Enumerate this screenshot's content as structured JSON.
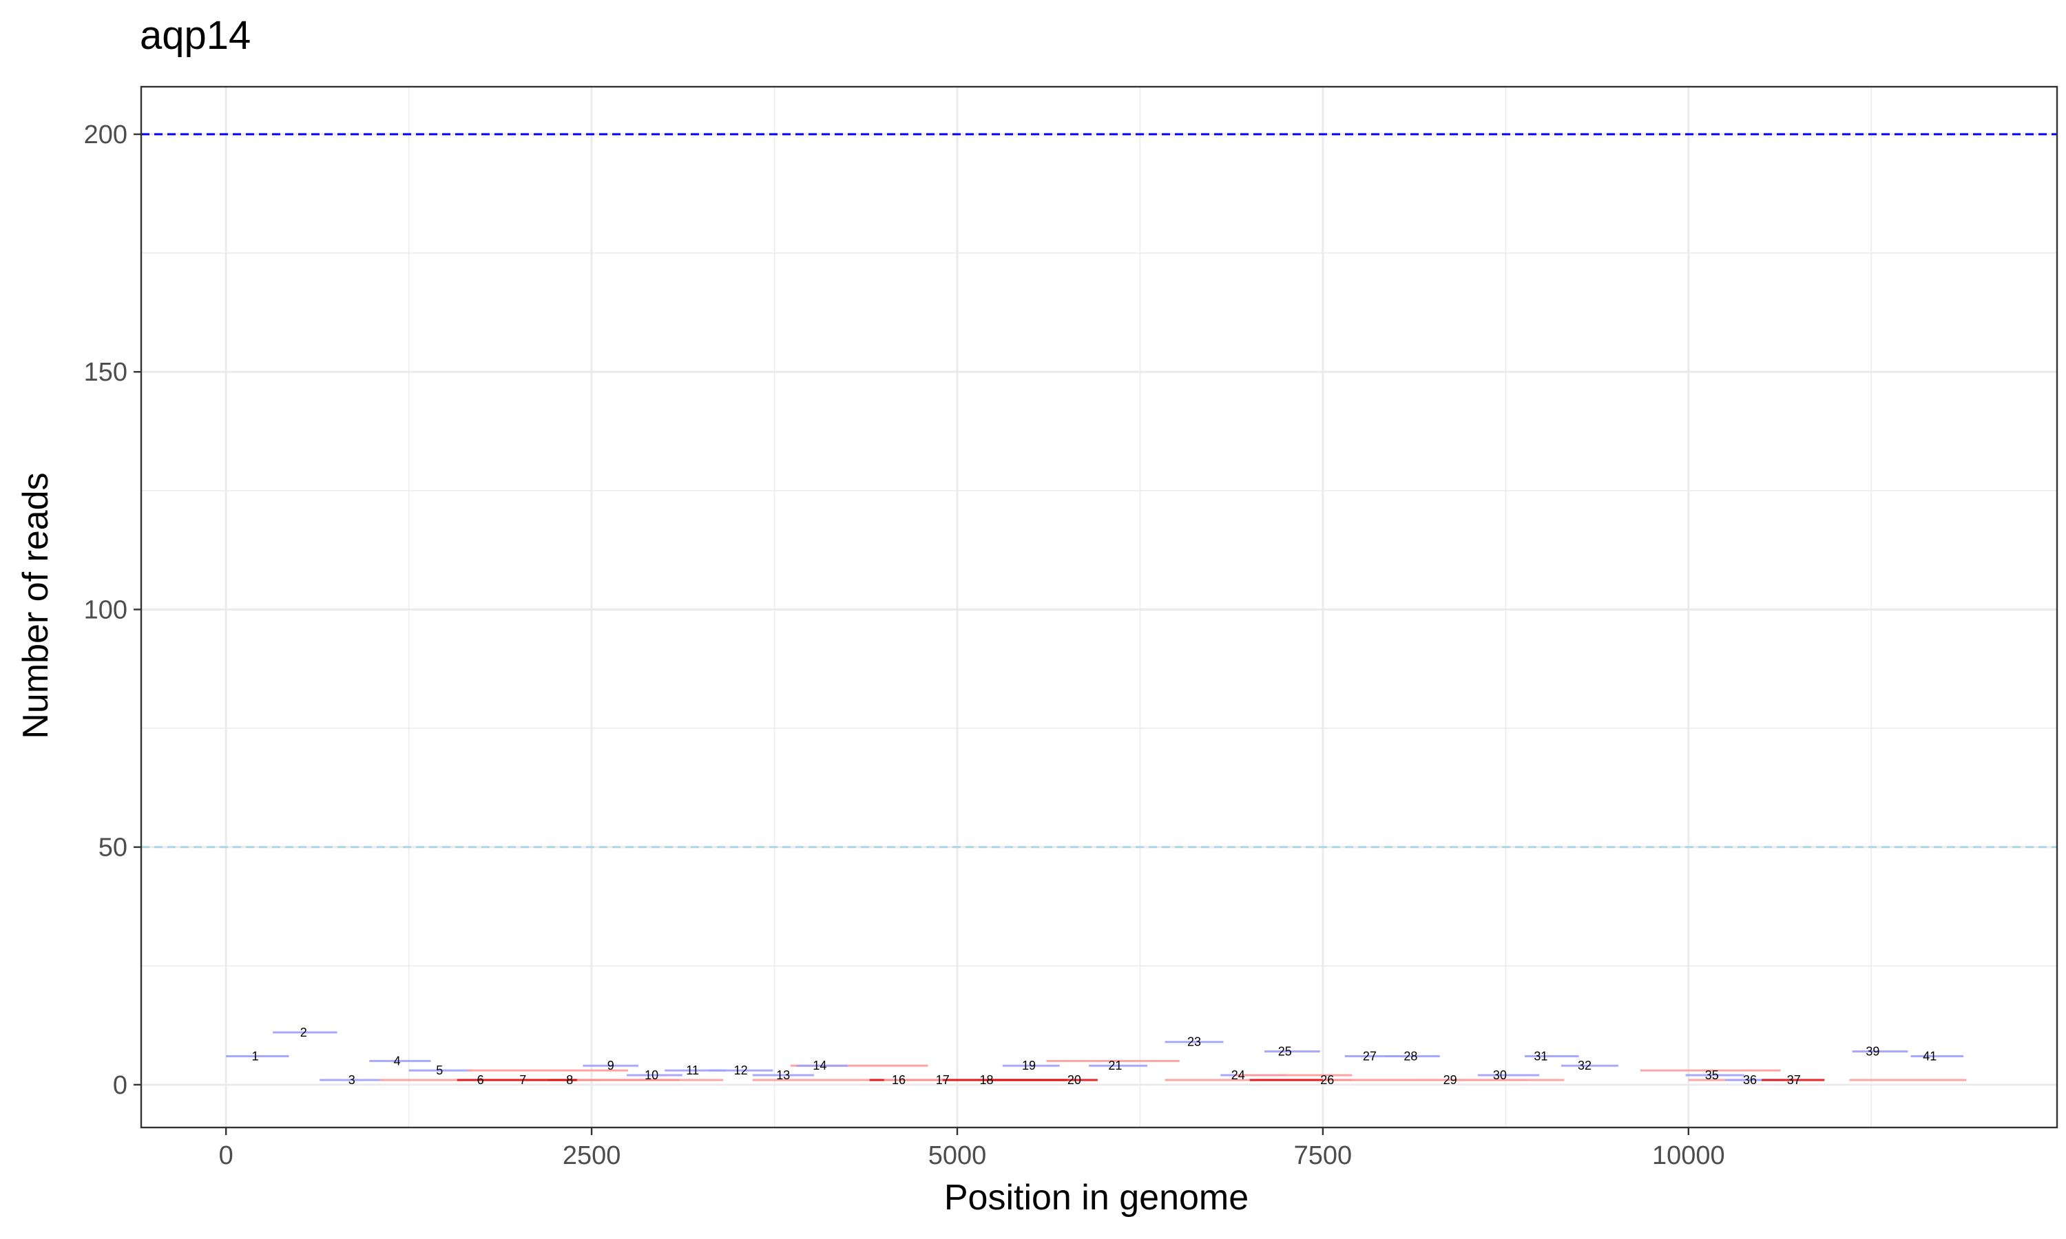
{
  "chart_data": {
    "type": "segment",
    "title": "aqp14",
    "xlabel": "Position in genome",
    "ylabel": "Number of reads",
    "xlim": [
      -580,
      12520
    ],
    "ylim": [
      -9,
      210
    ],
    "x_ticks": [
      0,
      2500,
      5000,
      7500,
      10000
    ],
    "x_tick_labels": [
      "0",
      "2500",
      "5000",
      "7500",
      "10000"
    ],
    "y_ticks": [
      0,
      50,
      100,
      150,
      200
    ],
    "y_tick_labels": [
      "0",
      "50",
      "100",
      "150",
      "200"
    ],
    "grid": true,
    "reference_lines": [
      {
        "y": 200,
        "color": "#0000ff",
        "style": "dashed"
      },
      {
        "y": 50,
        "color": "#add8e6",
        "style": "dashed"
      }
    ],
    "colors": {
      "forward": "#9e9eff",
      "reverse": "#ff9a9a",
      "reverse_dense": "#e60000",
      "label": "#000000"
    },
    "segments": [
      {
        "x0": 0,
        "x1": 430,
        "y": 6,
        "strand": "forward"
      },
      {
        "x0": 320,
        "x1": 760,
        "y": 11,
        "strand": "forward"
      },
      {
        "x0": 640,
        "x1": 1080,
        "y": 1,
        "strand": "forward"
      },
      {
        "x0": 980,
        "x1": 1400,
        "y": 5,
        "strand": "forward"
      },
      {
        "x0": 1250,
        "x1": 1680,
        "y": 3,
        "strand": "forward"
      },
      {
        "x0": 1650,
        "x1": 2750,
        "y": 3,
        "strand": "reverse"
      },
      {
        "x0": 1050,
        "x1": 2200,
        "y": 1,
        "strand": "reverse"
      },
      {
        "x0": 1580,
        "x1": 2560,
        "y": 1,
        "strand": "reverse_dense"
      },
      {
        "x0": 2200,
        "x1": 3100,
        "y": 1,
        "strand": "reverse_dense"
      },
      {
        "x0": 2400,
        "x1": 3400,
        "y": 1,
        "strand": "reverse"
      },
      {
        "x0": 2440,
        "x1": 2820,
        "y": 4,
        "strand": "forward"
      },
      {
        "x0": 2740,
        "x1": 3120,
        "y": 2,
        "strand": "forward"
      },
      {
        "x0": 3000,
        "x1": 3420,
        "y": 3,
        "strand": "forward"
      },
      {
        "x0": 3300,
        "x1": 3740,
        "y": 3,
        "strand": "forward"
      },
      {
        "x0": 3600,
        "x1": 4020,
        "y": 2,
        "strand": "forward"
      },
      {
        "x0": 3860,
        "x1": 4800,
        "y": 4,
        "strand": "reverse"
      },
      {
        "x0": 3900,
        "x1": 4250,
        "y": 4,
        "strand": "forward"
      },
      {
        "x0": 3600,
        "x1": 4700,
        "y": 1,
        "strand": "reverse"
      },
      {
        "x0": 4400,
        "x1": 5200,
        "y": 1,
        "strand": "reverse_dense"
      },
      {
        "x0": 4500,
        "x1": 5600,
        "y": 1,
        "strand": "reverse"
      },
      {
        "x0": 4900,
        "x1": 5750,
        "y": 1,
        "strand": "reverse_dense"
      },
      {
        "x0": 5200,
        "x1": 5960,
        "y": 1,
        "strand": "reverse_dense"
      },
      {
        "x0": 5310,
        "x1": 5700,
        "y": 4,
        "strand": "forward"
      },
      {
        "x0": 5610,
        "x1": 6520,
        "y": 5,
        "strand": "reverse"
      },
      {
        "x0": 5900,
        "x1": 6300,
        "y": 4,
        "strand": "forward"
      },
      {
        "x0": 6420,
        "x1": 6820,
        "y": 9,
        "strand": "forward"
      },
      {
        "x0": 6800,
        "x1": 7250,
        "y": 2,
        "strand": "forward"
      },
      {
        "x0": 6900,
        "x1": 7700,
        "y": 2,
        "strand": "reverse"
      },
      {
        "x0": 7100,
        "x1": 7480,
        "y": 7,
        "strand": "forward"
      },
      {
        "x0": 6420,
        "x1": 7500,
        "y": 1,
        "strand": "reverse"
      },
      {
        "x0": 7000,
        "x1": 7700,
        "y": 1,
        "strand": "reverse_dense"
      },
      {
        "x0": 7500,
        "x1": 8300,
        "y": 1,
        "strand": "reverse"
      },
      {
        "x0": 7650,
        "x1": 8060,
        "y": 6,
        "strand": "forward"
      },
      {
        "x0": 7920,
        "x1": 8300,
        "y": 6,
        "strand": "forward"
      },
      {
        "x0": 7700,
        "x1": 8650,
        "y": 1,
        "strand": "reverse"
      },
      {
        "x0": 8100,
        "x1": 8900,
        "y": 1,
        "strand": "reverse"
      },
      {
        "x0": 8350,
        "x1": 9150,
        "y": 1,
        "strand": "reverse"
      },
      {
        "x0": 8560,
        "x1": 8980,
        "y": 2,
        "strand": "forward"
      },
      {
        "x0": 8880,
        "x1": 9250,
        "y": 6,
        "strand": "forward"
      },
      {
        "x0": 9130,
        "x1": 9520,
        "y": 4,
        "strand": "forward"
      },
      {
        "x0": 9670,
        "x1": 10630,
        "y": 3,
        "strand": "reverse"
      },
      {
        "x0": 9980,
        "x1": 10380,
        "y": 2,
        "strand": "forward"
      },
      {
        "x0": 10000,
        "x1": 10700,
        "y": 1,
        "strand": "reverse"
      },
      {
        "x0": 10250,
        "x1": 10650,
        "y": 1,
        "strand": "forward"
      },
      {
        "x0": 10500,
        "x1": 10930,
        "y": 1,
        "strand": "reverse_dense"
      },
      {
        "x0": 11120,
        "x1": 11500,
        "y": 7,
        "strand": "forward"
      },
      {
        "x0": 11100,
        "x1": 11900,
        "y": 1,
        "strand": "reverse"
      },
      {
        "x0": 11520,
        "x1": 11880,
        "y": 6,
        "strand": "forward"
      }
    ],
    "labels": [
      {
        "text": "1",
        "x": 200,
        "y": 6
      },
      {
        "text": "2",
        "x": 530,
        "y": 11
      },
      {
        "text": "3",
        "x": 860,
        "y": 1
      },
      {
        "text": "4",
        "x": 1170,
        "y": 5
      },
      {
        "text": "5",
        "x": 1460,
        "y": 3
      },
      {
        "text": "6",
        "x": 1740,
        "y": 1
      },
      {
        "text": "7",
        "x": 2030,
        "y": 1
      },
      {
        "text": "8",
        "x": 2350,
        "y": 1
      },
      {
        "text": "9",
        "x": 2630,
        "y": 4
      },
      {
        "text": "10",
        "x": 2910,
        "y": 2
      },
      {
        "text": "11",
        "x": 3190,
        "y": 3
      },
      {
        "text": "12",
        "x": 3520,
        "y": 3
      },
      {
        "text": "13",
        "x": 3810,
        "y": 2
      },
      {
        "text": "14",
        "x": 4060,
        "y": 4
      },
      {
        "text": "16",
        "x": 4600,
        "y": 1
      },
      {
        "text": "17",
        "x": 4900,
        "y": 1
      },
      {
        "text": "18",
        "x": 5200,
        "y": 1
      },
      {
        "text": "19",
        "x": 5490,
        "y": 4
      },
      {
        "text": "20",
        "x": 5800,
        "y": 1
      },
      {
        "text": "21",
        "x": 6080,
        "y": 4
      },
      {
        "text": "23",
        "x": 6620,
        "y": 9
      },
      {
        "text": "24",
        "x": 6920,
        "y": 2
      },
      {
        "text": "25",
        "x": 7240,
        "y": 7
      },
      {
        "text": "26",
        "x": 7530,
        "y": 1
      },
      {
        "text": "27",
        "x": 7820,
        "y": 6
      },
      {
        "text": "28",
        "x": 8100,
        "y": 6
      },
      {
        "text": "29",
        "x": 8370,
        "y": 1
      },
      {
        "text": "30",
        "x": 8710,
        "y": 2
      },
      {
        "text": "31",
        "x": 8990,
        "y": 6
      },
      {
        "text": "32",
        "x": 9290,
        "y": 4
      },
      {
        "text": "35",
        "x": 10160,
        "y": 2
      },
      {
        "text": "36",
        "x": 10420,
        "y": 1
      },
      {
        "text": "37",
        "x": 10720,
        "y": 1
      },
      {
        "text": "39",
        "x": 11260,
        "y": 7
      },
      {
        "text": "41",
        "x": 11650,
        "y": 6
      }
    ]
  }
}
